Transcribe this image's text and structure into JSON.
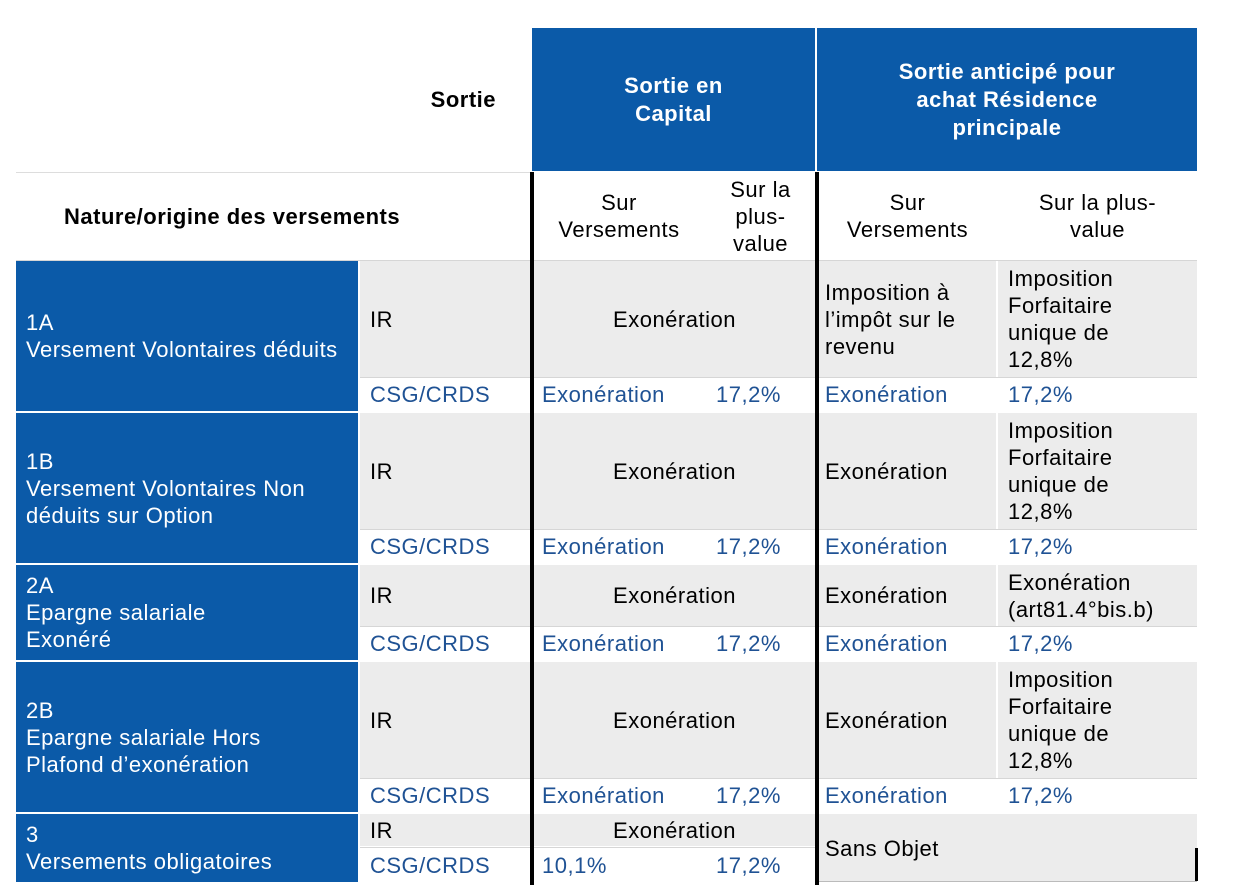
{
  "header": {
    "sortie_label": "Sortie",
    "capital_label": "Sortie en Capital",
    "residence_label": "Sortie anticipé pour achat Résidence principale",
    "nature_label": "Nature/origine des versements",
    "sub_versements_1": "Sur Versements",
    "sub_plusvalue_1": "Sur la plus-value",
    "sub_versements_2": "Sur Versements",
    "sub_plusvalue_2": "Sur la plus-value"
  },
  "rows": [
    {
      "code": "1A",
      "label": "Versement Volontaires déduits",
      "ir": "IR",
      "ir_capital": "Exonération",
      "ir_res_versements": "Imposition à l’impôt sur le revenu",
      "ir_res_plusvalue": "Imposition Forfaitaire unique de 12,8%",
      "csg": "CSG/CRDS",
      "csg_cap_versements": "Exonération",
      "csg_cap_plusvalue": "17,2%",
      "csg_res_versements": "Exonération",
      "csg_res_plusvalue": "17,2%"
    },
    {
      "code": "1B",
      "label": "Versement Volontaires Non déduits sur Option",
      "ir": "IR",
      "ir_capital": "Exonération",
      "ir_res_versements": "Exonération",
      "ir_res_plusvalue": "Imposition Forfaitaire unique de 12,8%",
      "csg": "CSG/CRDS",
      "csg_cap_versements": "Exonération",
      "csg_cap_plusvalue": "17,2%",
      "csg_res_versements": "Exonération",
      "csg_res_plusvalue": "17,2%"
    },
    {
      "code": "2A",
      "label": "Epargne salariale Exonéré",
      "ir": "IR",
      "ir_capital": "Exonération",
      "ir_res_versements": "Exonération",
      "ir_res_plusvalue": "Exonération (art81.4°bis.b)",
      "csg": "CSG/CRDS",
      "csg_cap_versements": "Exonération",
      "csg_cap_plusvalue": "17,2%",
      "csg_res_versements": "Exonération",
      "csg_res_plusvalue": "17,2%"
    },
    {
      "code": "2B",
      "label": "Epargne salariale Hors Plafond d’exonération",
      "ir": "IR",
      "ir_capital": "Exonération",
      "ir_res_versements": "Exonération",
      "ir_res_plusvalue": "Imposition Forfaitaire unique de 12,8%",
      "csg": "CSG/CRDS",
      "csg_cap_versements": "Exonération",
      "csg_cap_plusvalue": "17,2%",
      "csg_res_versements": "Exonération",
      "csg_res_plusvalue": "17,2%"
    },
    {
      "code": "3",
      "label": "Versements obligatoires",
      "ir": "IR",
      "ir_capital": "Exonération",
      "csg": "CSG/CRDS",
      "csg_cap_versements": "10,1%",
      "csg_cap_plusvalue": "17,2%",
      "res_merged": "Sans Objet"
    }
  ],
  "colors": {
    "header_blue": "#0b5aa8",
    "cell_grey": "#ececec",
    "link_blue": "#1f5294"
  }
}
